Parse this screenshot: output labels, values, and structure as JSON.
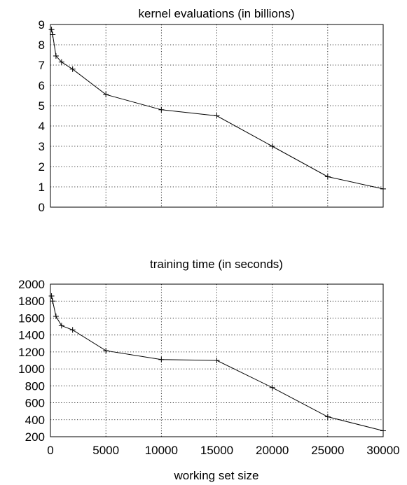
{
  "chart_data": [
    {
      "type": "line",
      "title": "kernel evaluations (in billions)",
      "xlabel": "",
      "ylabel": "",
      "xlim": [
        0,
        30000
      ],
      "ylim": [
        0,
        9
      ],
      "grid": true,
      "yticks": [
        "0",
        "1",
        "2",
        "3",
        "4",
        "5",
        "6",
        "7",
        "8",
        "9"
      ],
      "xticks": [],
      "series": [
        {
          "x": [
            100,
            200,
            500,
            1000,
            2000,
            5000,
            10000,
            15000,
            20000,
            25000,
            30000
          ],
          "values": [
            8.75,
            8.5,
            7.45,
            7.15,
            6.8,
            5.55,
            4.8,
            4.5,
            3.0,
            1.5,
            0.9
          ]
        }
      ]
    },
    {
      "type": "line",
      "title": "training time (in seconds)",
      "xlabel": "working set size",
      "ylabel": "",
      "xlim": [
        0,
        30000
      ],
      "ylim": [
        200,
        2000
      ],
      "grid": true,
      "yticks": [
        "200",
        "400",
        "600",
        "800",
        "1000",
        "1200",
        "1400",
        "1600",
        "1800",
        "2000"
      ],
      "xticks": [
        "0",
        "5000",
        "10000",
        "15000",
        "20000",
        "25000",
        "30000"
      ],
      "series": [
        {
          "x": [
            100,
            200,
            500,
            1000,
            2000,
            5000,
            10000,
            15000,
            20000,
            25000,
            30000
          ],
          "values": [
            1860,
            1800,
            1620,
            1510,
            1460,
            1215,
            1110,
            1100,
            780,
            435,
            270
          ]
        }
      ]
    }
  ]
}
